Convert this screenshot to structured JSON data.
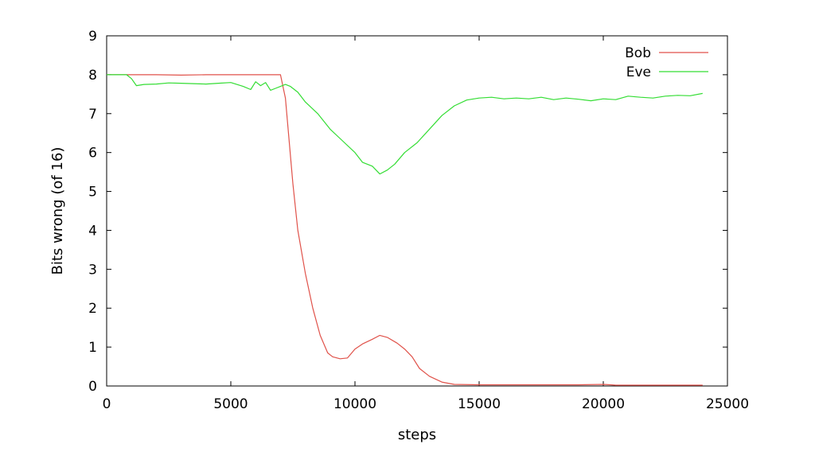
{
  "chart_data": {
    "type": "line",
    "xlabel": "steps",
    "ylabel": "Bits wrong (of 16)",
    "xlim": [
      0,
      25000
    ],
    "ylim": [
      0,
      9
    ],
    "xticks": [
      "0",
      "5000",
      "10000",
      "15000",
      "20000",
      "25000"
    ],
    "yticks": [
      "0",
      "1",
      "2",
      "3",
      "4",
      "5",
      "6",
      "7",
      "8",
      "9"
    ],
    "grid": false,
    "legend_position": "top-right",
    "series": [
      {
        "name": "Bob",
        "color": "#e0524a",
        "x": [
          0,
          1000,
          2000,
          3000,
          4000,
          5000,
          6000,
          6900,
          7000,
          7200,
          7500,
          7700,
          8000,
          8300,
          8600,
          8900,
          9100,
          9400,
          9700,
          10000,
          10300,
          10700,
          11000,
          11300,
          11700,
          12000,
          12300,
          12600,
          13000,
          13500,
          14000,
          15000,
          16000,
          17000,
          18000,
          19000,
          20000,
          20300,
          20500,
          21000,
          22000,
          23000,
          24000
        ],
        "y": [
          8.0,
          8.0,
          8.0,
          7.99,
          8.0,
          8.0,
          8.0,
          8.0,
          8.0,
          7.4,
          5.2,
          4.0,
          2.9,
          2.0,
          1.3,
          0.85,
          0.75,
          0.7,
          0.72,
          0.95,
          1.08,
          1.2,
          1.3,
          1.25,
          1.1,
          0.95,
          0.75,
          0.45,
          0.25,
          0.1,
          0.04,
          0.03,
          0.03,
          0.03,
          0.03,
          0.03,
          0.04,
          0.03,
          0.02,
          0.02,
          0.02,
          0.02,
          0.02
        ]
      },
      {
        "name": "Eve",
        "color": "#33dd33",
        "x": [
          0,
          800,
          1000,
          1200,
          1500,
          2000,
          2500,
          3000,
          3500,
          4000,
          4500,
          5000,
          5500,
          5800,
          6000,
          6200,
          6400,
          6600,
          6800,
          7000,
          7200,
          7400,
          7700,
          8000,
          8500,
          9000,
          9500,
          10000,
          10300,
          10700,
          11000,
          11300,
          11600,
          12000,
          12500,
          13000,
          13500,
          14000,
          14500,
          15000,
          15500,
          16000,
          16500,
          17000,
          17500,
          18000,
          18500,
          19000,
          19500,
          20000,
          20500,
          21000,
          21500,
          22000,
          22500,
          23000,
          23500,
          24000
        ],
        "y": [
          8.0,
          8.0,
          7.9,
          7.72,
          7.75,
          7.76,
          7.79,
          7.78,
          7.77,
          7.76,
          7.78,
          7.8,
          7.7,
          7.62,
          7.82,
          7.72,
          7.8,
          7.6,
          7.65,
          7.7,
          7.75,
          7.7,
          7.55,
          7.3,
          7.0,
          6.6,
          6.3,
          6.0,
          5.75,
          5.65,
          5.45,
          5.55,
          5.7,
          6.0,
          6.25,
          6.6,
          6.95,
          7.2,
          7.35,
          7.4,
          7.42,
          7.38,
          7.4,
          7.38,
          7.42,
          7.36,
          7.4,
          7.37,
          7.33,
          7.38,
          7.36,
          7.45,
          7.42,
          7.4,
          7.45,
          7.47,
          7.46,
          7.52
        ]
      }
    ]
  }
}
